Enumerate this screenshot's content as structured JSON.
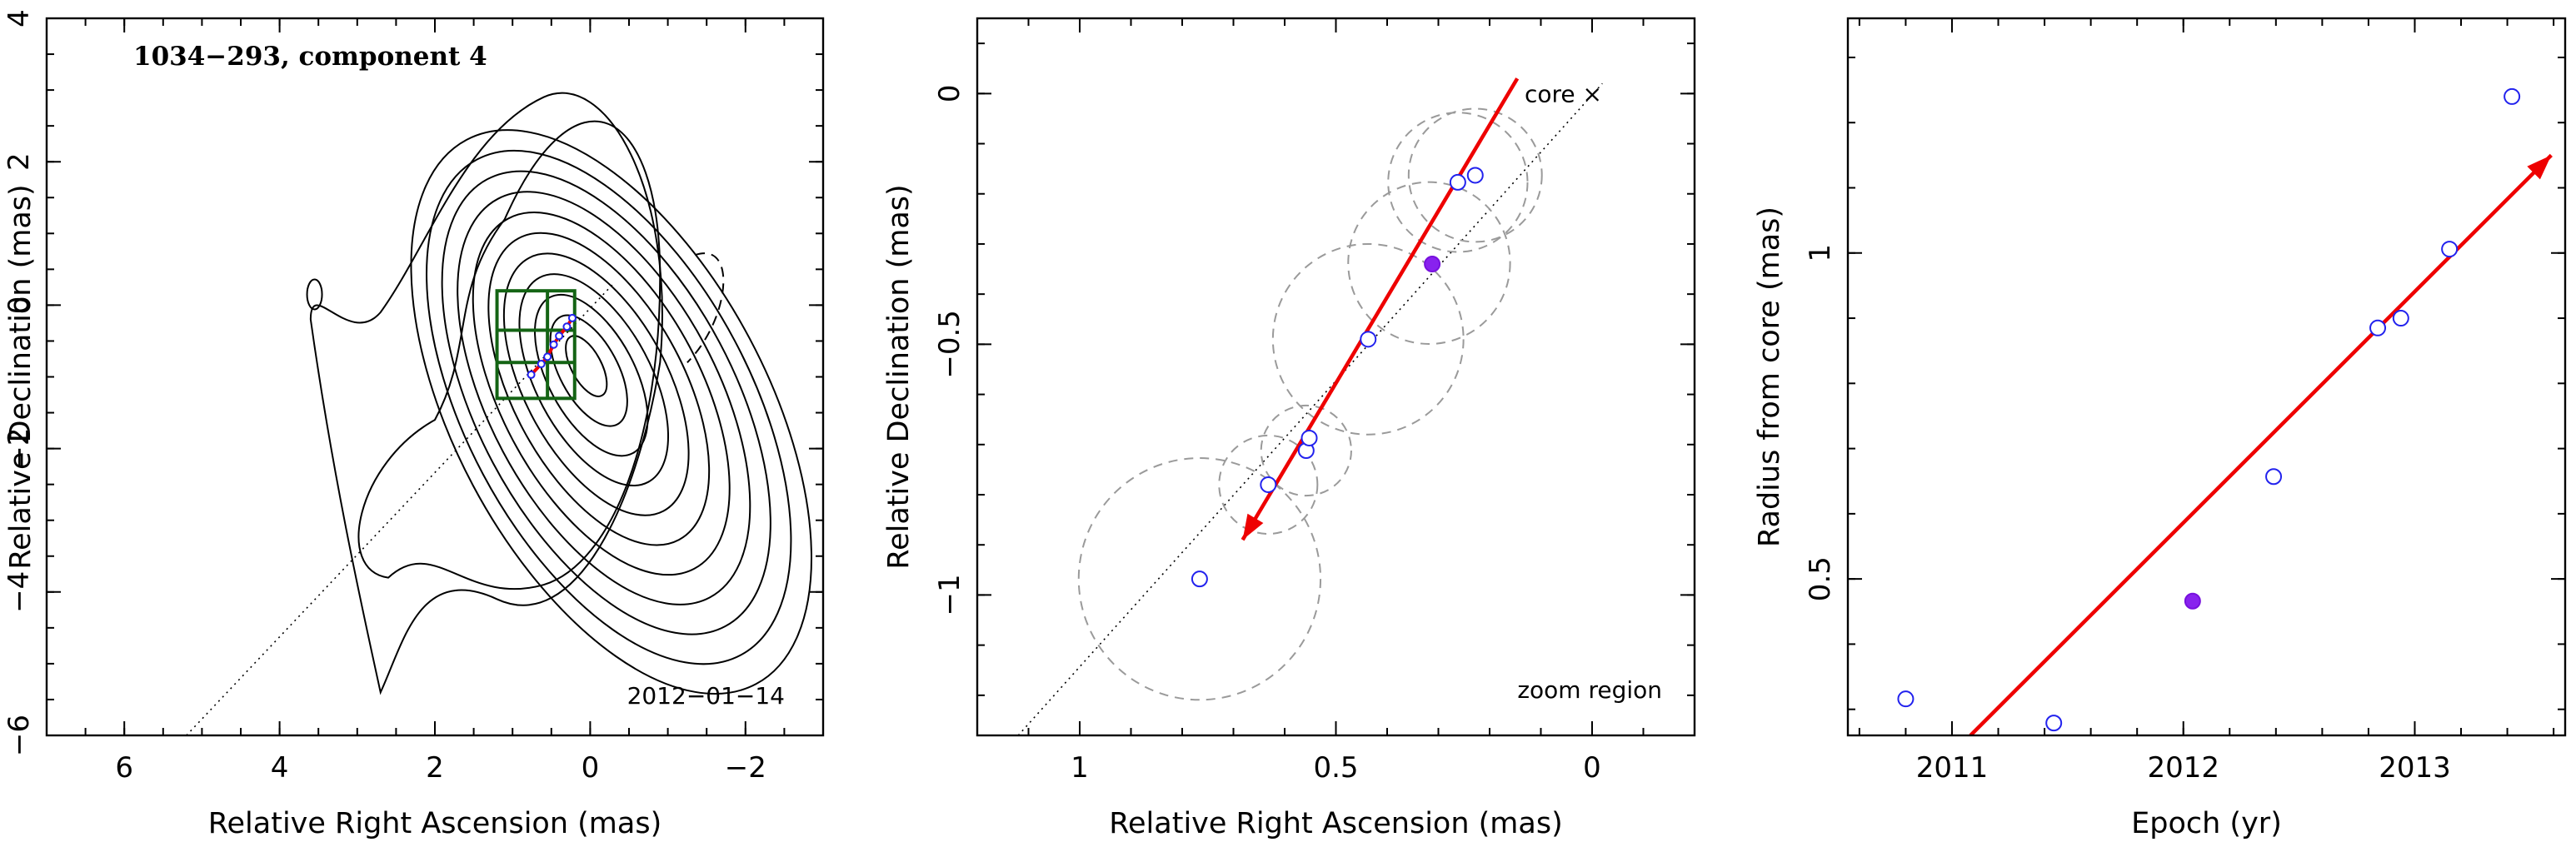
{
  "chart_data": [
    {
      "type": "contour",
      "annotation": "1034−293, component 4",
      "epoch_label": "2012−01−14",
      "xlabel": "Relative Right Ascension (mas)",
      "ylabel": "Relative Declination (mas)",
      "xlim": [
        7,
        -3
      ],
      "ylim": [
        -6,
        4
      ],
      "xticks": [
        6,
        4,
        2,
        0,
        -2
      ],
      "xtick_labels": [
        "6",
        "4",
        "2",
        "0",
        "−2"
      ],
      "yticks": [
        4,
        2,
        0,
        -2,
        -4,
        -6
      ],
      "ytick_labels": [
        "4",
        "2",
        "0",
        "−2",
        "−4",
        "−6"
      ],
      "zoom_box": {
        "x": [
          1.2,
          0.2
        ],
        "y": [
          -1.3,
          0.2
        ]
      },
      "jet_direction_line": {
        "x": [
          5.2,
          -0.3
        ],
        "y": [
          -6.0,
          0.3
        ]
      },
      "component_track": {
        "x": [
          0.76,
          0.63,
          0.55,
          0.47,
          0.4,
          0.3,
          0.23
        ],
        "y": [
          -0.97,
          -0.82,
          -0.72,
          -0.55,
          -0.43,
          -0.3,
          -0.18
        ]
      }
    },
    {
      "type": "scatter",
      "annotation": "core ×",
      "zoom_label": "zoom region",
      "xlabel": "Relative Right Ascension (mas)",
      "ylabel": "Relative Declination (mas)",
      "xlim": [
        1.2,
        -0.2
      ],
      "ylim": [
        -1.28,
        0.15
      ],
      "xticks": [
        1,
        0.5,
        0
      ],
      "xtick_labels": [
        "1",
        "0.5",
        "0"
      ],
      "yticks": [
        0,
        -0.5,
        -1
      ],
      "ytick_labels": [
        "0",
        "−0.5",
        "−1"
      ],
      "core": {
        "x": 0.0,
        "y": 0.0
      },
      "open_points": {
        "x": [
          0.766,
          0.632,
          0.558,
          0.552,
          0.437,
          0.262,
          0.228
        ],
        "y": [
          -0.968,
          -0.78,
          -0.712,
          -0.687,
          -0.49,
          -0.177,
          -0.163
        ]
      },
      "filled_point": {
        "x": 0.312,
        "y": -0.34
      },
      "error_circles": [
        {
          "x": 0.766,
          "y": -0.968,
          "r": 0.236
        },
        {
          "x": 0.632,
          "y": -0.78,
          "r": 0.096
        },
        {
          "x": 0.558,
          "y": -0.712,
          "r": 0.088
        },
        {
          "x": 0.437,
          "y": -0.49,
          "r": 0.186
        },
        {
          "x": 0.318,
          "y": -0.338,
          "r": 0.158
        },
        {
          "x": 0.262,
          "y": -0.177,
          "r": 0.136
        },
        {
          "x": 0.228,
          "y": -0.163,
          "r": 0.13
        }
      ],
      "trend_arrow": {
        "from": {
          "x": 0.146,
          "y": 0.03
        },
        "to": {
          "x": 0.682,
          "y": -0.89
        }
      },
      "reference_line": {
        "x": [
          1.12,
          -0.02
        ],
        "y": [
          -1.28,
          0.02
        ]
      }
    },
    {
      "type": "scatter",
      "xlabel": "Epoch (yr)",
      "ylabel": "Radius from core (mas)",
      "xlim": [
        2010.55,
        2013.65
      ],
      "ylim": [
        0.26,
        1.36
      ],
      "xticks": [
        2011,
        2012,
        2013
      ],
      "xtick_labels": [
        "2011",
        "2012",
        "2013"
      ],
      "yticks": [
        0.5,
        1
      ],
      "ytick_labels": [
        "0.5",
        "1"
      ],
      "open_points": {
        "x": [
          2010.8,
          2011.44,
          2012.39,
          2012.84,
          2012.94,
          2013.15,
          2013.42
        ],
        "y": [
          0.316,
          0.279,
          0.657,
          0.885,
          0.9,
          1.006,
          1.24
        ]
      },
      "filled_point": {
        "x": 2012.04,
        "y": 0.466
      },
      "fit_arrow": {
        "from": {
          "x": 2011.08,
          "y": 0.26
        },
        "to": {
          "x": 2013.59,
          "y": 1.15
        }
      }
    }
  ]
}
